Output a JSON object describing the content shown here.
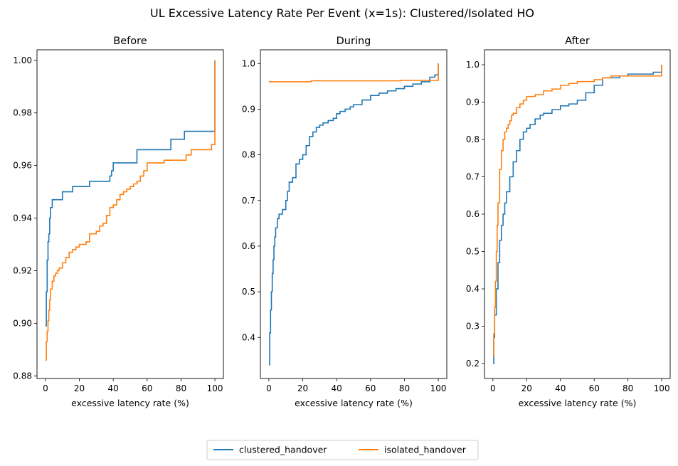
{
  "figure_title": "UL Excessive Latency Rate Per Event (x=1s): Clustered/Isolated HO",
  "legend": {
    "placement": "lower-center",
    "items": [
      {
        "label": "clustered_handover",
        "color": "#1f77b4"
      },
      {
        "label": "isolated_handover",
        "color": "#ff7f0e"
      }
    ]
  },
  "chart_data": [
    {
      "type": "line",
      "title": "Before",
      "xlabel": "excessive latency rate (%)",
      "ylabel": "",
      "xlim": [
        -5,
        105
      ],
      "ylim": [
        0.879,
        1.004
      ],
      "xticks": [
        0,
        20,
        40,
        60,
        80,
        100
      ],
      "yticks": [
        0.88,
        0.9,
        0.92,
        0.94,
        0.96,
        0.98,
        1.0
      ],
      "ytick_labels": [
        "0.88",
        "0.90",
        "0.92",
        "0.94",
        "0.96",
        "0.98",
        "1.00"
      ],
      "grid": false,
      "series": [
        {
          "name": "clustered_handover",
          "color": "#1f77b4",
          "step": true,
          "x": [
            0,
            0.5,
            1,
            1.5,
            2,
            2.5,
            3,
            4,
            5,
            10,
            16,
            26,
            38,
            39,
            40,
            54,
            74,
            82,
            100,
            100
          ],
          "y": [
            0.899,
            0.912,
            0.924,
            0.931,
            0.934,
            0.94,
            0.944,
            0.947,
            0.947,
            0.95,
            0.952,
            0.954,
            0.956,
            0.958,
            0.961,
            0.966,
            0.97,
            0.973,
            0.973,
            1.0
          ]
        },
        {
          "name": "isolated_handover",
          "color": "#ff7f0e",
          "step": true,
          "x": [
            0,
            0.5,
            1,
            1.5,
            2,
            2.5,
            3,
            4,
            5,
            6,
            7,
            8,
            10,
            12,
            14,
            16,
            18,
            20,
            22,
            24,
            26,
            30,
            32,
            34,
            36,
            38,
            40,
            42,
            44,
            46,
            48,
            50,
            52,
            54,
            56,
            58,
            60,
            68,
            70,
            80,
            83,
            86,
            95,
            98,
            100,
            100
          ],
          "y": [
            0.886,
            0.893,
            0.897,
            0.901,
            0.905,
            0.909,
            0.913,
            0.916,
            0.918,
            0.919,
            0.92,
            0.921,
            0.923,
            0.925,
            0.927,
            0.928,
            0.929,
            0.93,
            0.93,
            0.931,
            0.934,
            0.935,
            0.937,
            0.938,
            0.941,
            0.944,
            0.945,
            0.947,
            0.949,
            0.95,
            0.951,
            0.952,
            0.953,
            0.954,
            0.956,
            0.958,
            0.961,
            0.961,
            0.962,
            0.962,
            0.964,
            0.966,
            0.966,
            0.968,
            0.968,
            1.0
          ]
        }
      ]
    },
    {
      "type": "line",
      "title": "During",
      "xlabel": "excessive latency rate (%)",
      "ylabel": "",
      "xlim": [
        -5,
        105
      ],
      "ylim": [
        0.31,
        1.03
      ],
      "xticks": [
        0,
        20,
        40,
        60,
        80,
        100
      ],
      "yticks": [
        0.4,
        0.5,
        0.6,
        0.7,
        0.8,
        0.9,
        1.0
      ],
      "ytick_labels": [
        "0.4",
        "0.5",
        "0.6",
        "0.7",
        "0.8",
        "0.9",
        "1.0"
      ],
      "grid": false,
      "series": [
        {
          "name": "clustered_handover",
          "color": "#1f77b4",
          "step": true,
          "x": [
            0,
            0.5,
            1,
            1.5,
            2,
            2.5,
            3,
            3.5,
            4,
            5,
            6,
            8,
            10,
            11,
            12,
            14,
            16,
            18,
            20,
            22,
            24,
            26,
            28,
            30,
            32,
            35,
            38,
            40,
            42,
            45,
            48,
            50,
            55,
            60,
            65,
            70,
            75,
            80,
            85,
            90,
            95,
            98,
            100,
            100
          ],
          "y": [
            0.34,
            0.41,
            0.46,
            0.5,
            0.54,
            0.57,
            0.6,
            0.62,
            0.64,
            0.66,
            0.67,
            0.68,
            0.7,
            0.72,
            0.74,
            0.75,
            0.78,
            0.79,
            0.8,
            0.82,
            0.84,
            0.85,
            0.86,
            0.865,
            0.87,
            0.875,
            0.88,
            0.89,
            0.895,
            0.9,
            0.905,
            0.91,
            0.92,
            0.93,
            0.935,
            0.94,
            0.945,
            0.95,
            0.955,
            0.96,
            0.97,
            0.975,
            0.98,
            1.0
          ]
        },
        {
          "name": "isolated_handover",
          "color": "#ff7f0e",
          "step": true,
          "x": [
            0,
            22,
            25,
            40,
            60,
            78,
            90,
            100,
            100
          ],
          "y": [
            0.96,
            0.96,
            0.962,
            0.962,
            0.962,
            0.963,
            0.963,
            0.965,
            1.0
          ]
        }
      ]
    },
    {
      "type": "line",
      "title": "After",
      "xlabel": "excessive latency rate (%)",
      "ylabel": "",
      "xlim": [
        -5,
        105
      ],
      "ylim": [
        0.16,
        1.04
      ],
      "xticks": [
        0,
        20,
        40,
        60,
        80,
        100
      ],
      "yticks": [
        0.2,
        0.3,
        0.4,
        0.5,
        0.6,
        0.7,
        0.8,
        0.9,
        1.0
      ],
      "ytick_labels": [
        "0.2",
        "0.3",
        "0.4",
        "0.5",
        "0.6",
        "0.7",
        "0.8",
        "0.9",
        "1.0"
      ],
      "grid": false,
      "series": [
        {
          "name": "clustered_handover",
          "color": "#1f77b4",
          "step": true,
          "x": [
            0,
            0.5,
            1,
            2,
            3,
            4,
            5,
            6,
            7,
            8,
            10,
            12,
            14,
            16,
            18,
            20,
            22,
            25,
            28,
            30,
            35,
            40,
            45,
            50,
            55,
            60,
            65,
            70,
            75,
            80,
            90,
            95,
            100,
            100
          ],
          "y": [
            0.2,
            0.27,
            0.33,
            0.4,
            0.47,
            0.53,
            0.57,
            0.6,
            0.63,
            0.66,
            0.7,
            0.74,
            0.77,
            0.8,
            0.82,
            0.83,
            0.84,
            0.855,
            0.865,
            0.87,
            0.88,
            0.89,
            0.895,
            0.905,
            0.925,
            0.945,
            0.965,
            0.965,
            0.97,
            0.975,
            0.975,
            0.98,
            0.985,
            1.0
          ]
        },
        {
          "name": "isolated_handover",
          "color": "#ff7f0e",
          "step": true,
          "x": [
            0,
            0.5,
            1,
            1.5,
            2,
            2.5,
            3,
            4,
            5,
            6,
            7,
            8,
            9,
            10,
            11,
            12,
            14,
            16,
            18,
            20,
            25,
            30,
            35,
            40,
            45,
            50,
            60,
            65,
            70,
            80,
            90,
            100,
            100
          ],
          "y": [
            0.22,
            0.28,
            0.35,
            0.42,
            0.5,
            0.57,
            0.63,
            0.72,
            0.77,
            0.8,
            0.82,
            0.83,
            0.84,
            0.85,
            0.865,
            0.87,
            0.885,
            0.895,
            0.905,
            0.915,
            0.92,
            0.93,
            0.935,
            0.945,
            0.95,
            0.955,
            0.96,
            0.965,
            0.97,
            0.97,
            0.97,
            0.97,
            1.0
          ]
        }
      ]
    }
  ]
}
